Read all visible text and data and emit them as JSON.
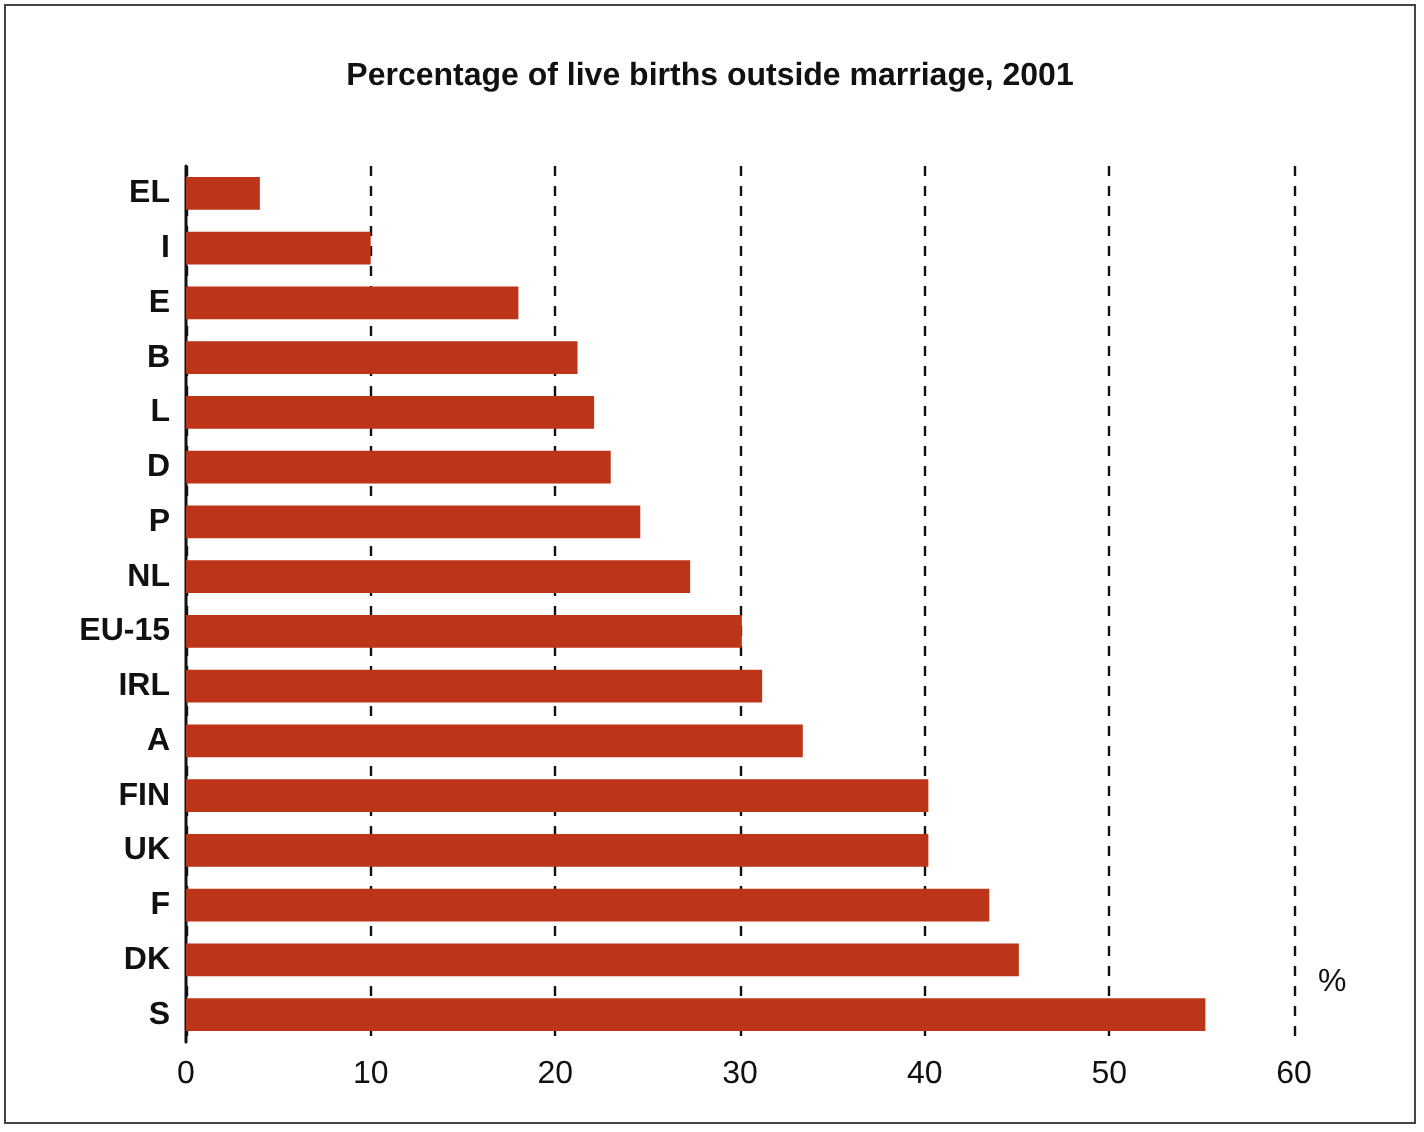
{
  "chart_data": {
    "type": "bar",
    "orientation": "horizontal",
    "title": "Percentage of live births outside marriage, 2001",
    "xlabel": "%",
    "categories": [
      "EL",
      "I",
      "E",
      "B",
      "L",
      "D",
      "P",
      "NL",
      "EU-15",
      "IRL",
      "A",
      "FIN",
      "UK",
      "F",
      "DK",
      "S"
    ],
    "values": [
      4.0,
      10.0,
      18.0,
      21.2,
      22.1,
      23.0,
      24.6,
      27.3,
      30.1,
      31.2,
      33.4,
      40.2,
      40.2,
      43.5,
      45.1,
      55.2
    ],
    "color": "#bd3519",
    "xlim": [
      0,
      60
    ],
    "xticks": [
      0,
      10,
      20,
      30,
      40,
      50,
      60
    ],
    "grid": "x"
  }
}
